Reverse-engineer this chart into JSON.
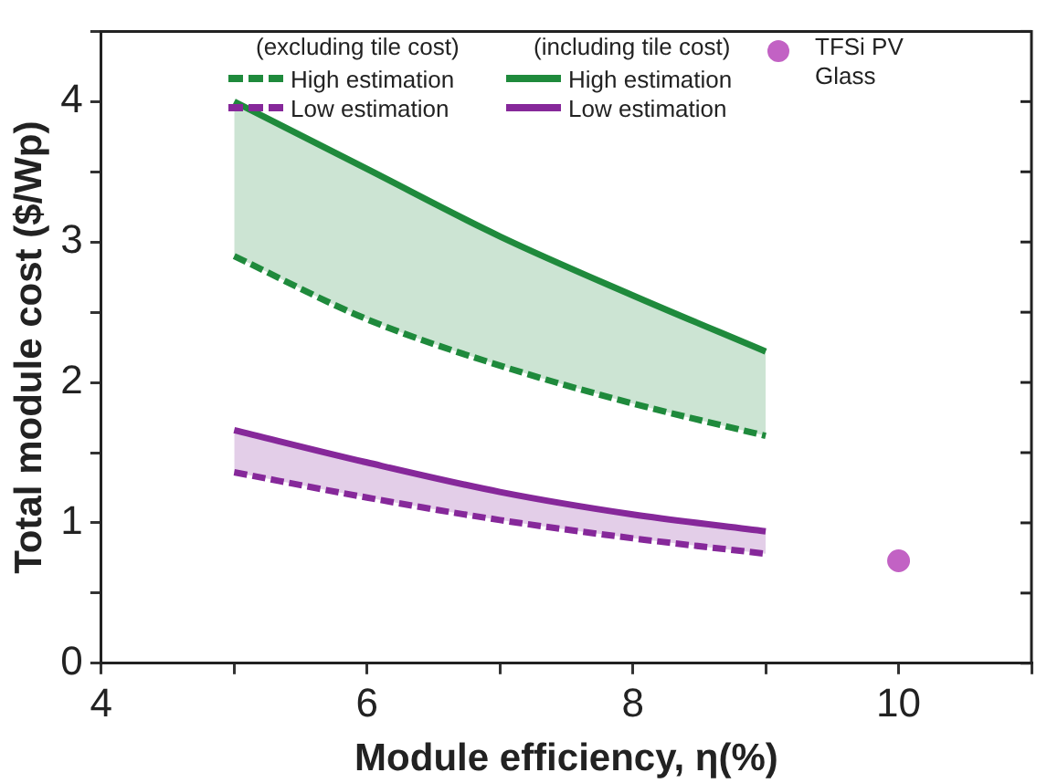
{
  "chart_data": {
    "type": "line",
    "xlabel": "Module efficiency, η(%)",
    "ylabel": "Total module cost ($/Wp)",
    "x": [
      5,
      6,
      7,
      8,
      9
    ],
    "series": [
      {
        "name": "High estimation",
        "color": "#1f8a3c",
        "line_style": "dashed",
        "values": [
          2.9,
          2.45,
          2.12,
          1.85,
          1.62
        ]
      },
      {
        "name": "Low estimation",
        "color": "#86289a",
        "line_style": "dashed",
        "values": [
          1.36,
          1.18,
          1.02,
          0.89,
          0.78
        ]
      },
      {
        "name": "High estimation",
        "color": "#1f8a3c",
        "line_style": "solid",
        "values": [
          4.0,
          3.52,
          3.04,
          2.62,
          2.22
        ],
        "lower": [
          2.9,
          2.45,
          2.12,
          1.85,
          1.62
        ],
        "upper": [
          4.0,
          3.52,
          3.04,
          2.62,
          2.22
        ]
      },
      {
        "name": "Low estimation",
        "color": "#86289a",
        "line_style": "solid",
        "values": [
          1.66,
          1.43,
          1.22,
          1.06,
          0.94
        ],
        "lower": [
          1.36,
          1.18,
          1.02,
          0.89,
          0.78
        ],
        "upper": [
          1.66,
          1.43,
          1.22,
          1.06,
          0.94
        ]
      },
      {
        "name": "TFSi PV Glass",
        "type": "scatter",
        "color": "#c262c4",
        "x": [
          10
        ],
        "values": [
          0.73
        ]
      }
    ],
    "annotations": [
      "(excluding tile cost)",
      "(including tile cost)"
    ],
    "xlim": [
      4,
      11
    ],
    "ylim": [
      0,
      4.5
    ],
    "xticks": [
      4,
      {
        "value": 5,
        "label": null
      },
      6,
      {
        "value": 7,
        "label": null
      },
      8,
      {
        "value": 9,
        "label": null
      },
      10,
      {
        "value": 11,
        "label": null
      }
    ],
    "yticks": [
      0,
      {
        "value": 0.5,
        "label": null
      },
      1,
      {
        "value": 1.5,
        "label": null
      },
      2,
      {
        "value": 2.5,
        "label": null
      },
      3,
      {
        "value": 3.5,
        "label": null
      },
      4,
      {
        "value": 4.5,
        "label": null
      }
    ],
    "legend": "top",
    "grid": false
  }
}
